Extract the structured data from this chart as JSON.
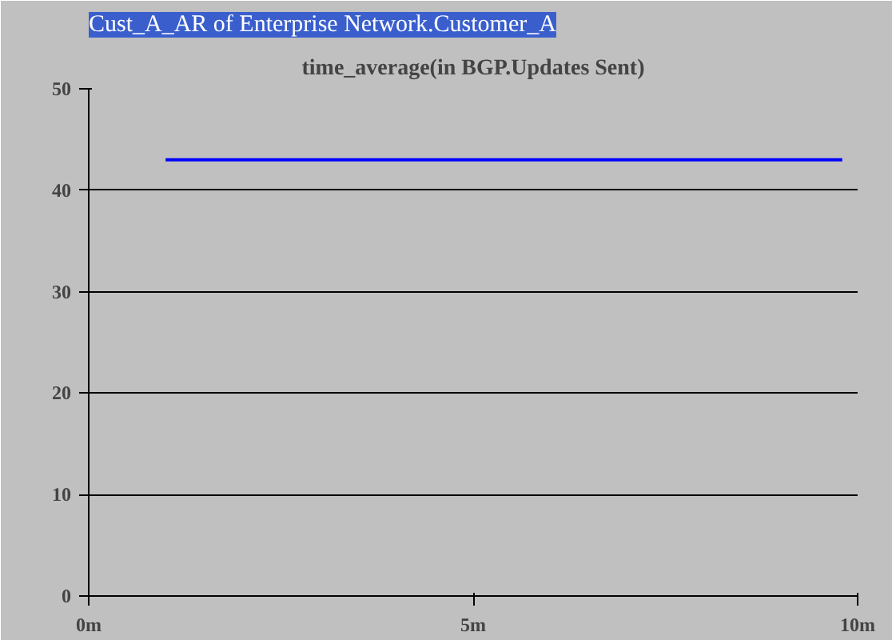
{
  "chart_data": {
    "type": "line",
    "title": "Cust_A_AR of Enterprise Network.Customer_A",
    "subtitle": "time_average(in BGP.Updates Sent)",
    "series": [
      {
        "color": "#0000ff",
        "x": [
          1,
          9.8
        ],
        "values": [
          43,
          43
        ]
      }
    ],
    "xlim": [
      0,
      10
    ],
    "xticks": [
      {
        "value": 0,
        "label": "0m"
      },
      {
        "value": 5,
        "label": "5m"
      },
      {
        "value": 10,
        "label": "10m"
      }
    ],
    "ylim": [
      0,
      50
    ],
    "yticks": [
      0,
      10,
      20,
      30,
      40,
      50
    ],
    "grid": "y",
    "marker": "none",
    "line_style": "solid"
  }
}
